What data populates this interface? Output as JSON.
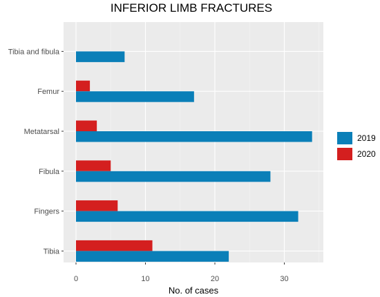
{
  "chart_data": {
    "type": "bar",
    "orientation": "horizontal",
    "title": "INFERIOR LIMB FRACTURES",
    "xlabel": "No. of cases",
    "ylabel": "",
    "categories": [
      "Tibia and fibula",
      "Femur",
      "Metatarsal",
      "Fibula",
      "Fingers",
      "Tibia"
    ],
    "series": [
      {
        "name": "2019",
        "color": "#0a7fb8",
        "values": [
          7,
          17,
          34,
          28,
          32,
          22
        ]
      },
      {
        "name": "2020",
        "color": "#d41f1f",
        "values": [
          0,
          2,
          3,
          5,
          6,
          11
        ]
      }
    ],
    "xlim": [
      0,
      35.5
    ],
    "xticks": [
      0,
      10,
      20,
      30
    ],
    "grid": true,
    "legend_position": "right"
  }
}
